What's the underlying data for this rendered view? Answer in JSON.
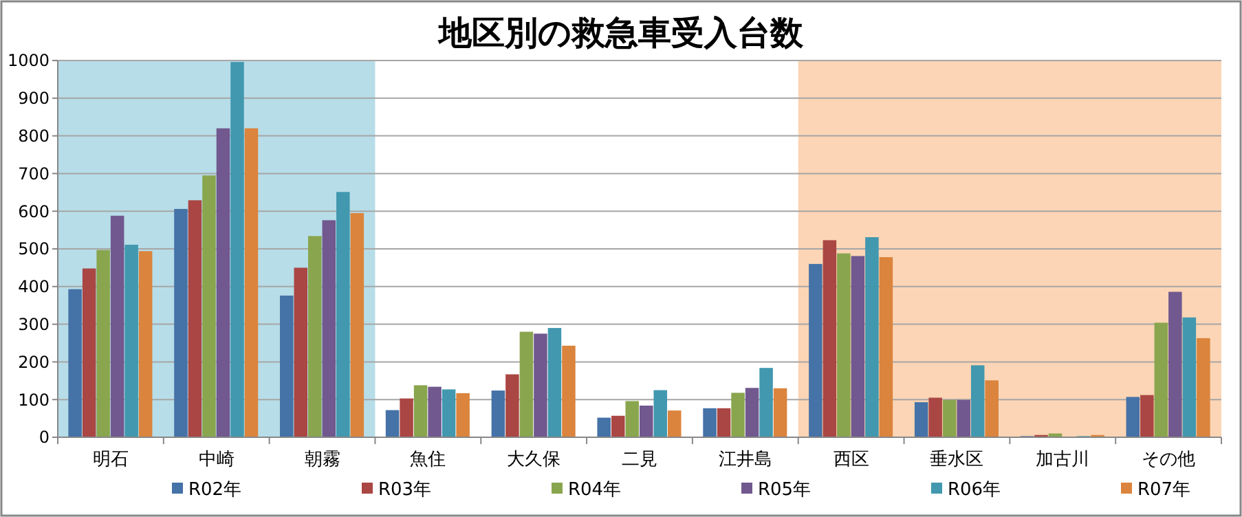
{
  "chart_data": {
    "type": "bar",
    "title": "地区別の救急車受入台数",
    "categories": [
      "明石",
      "中崎",
      "朝霧",
      "魚住",
      "大久保",
      "二見",
      "江井島",
      "西区",
      "垂水区",
      "加古川",
      "その他"
    ],
    "series": [
      {
        "name": "R02年",
        "color": "#4572a7",
        "values": [
          393,
          606,
          376,
          72,
          124,
          52,
          77,
          460,
          93,
          3,
          107
        ]
      },
      {
        "name": "R03年",
        "color": "#aa4643",
        "values": [
          448,
          629,
          450,
          103,
          167,
          57,
          77,
          523,
          105,
          6,
          112
        ]
      },
      {
        "name": "R04年",
        "color": "#89a54e",
        "values": [
          497,
          695,
          534,
          138,
          280,
          96,
          118,
          488,
          99,
          10,
          304
        ]
      },
      {
        "name": "R05年",
        "color": "#71588f",
        "values": [
          588,
          820,
          576,
          134,
          275,
          84,
          131,
          481,
          99,
          0,
          386
        ]
      },
      {
        "name": "R06年",
        "color": "#4198af",
        "values": [
          511,
          996,
          651,
          127,
          290,
          125,
          184,
          531,
          191,
          3,
          318
        ]
      },
      {
        "name": "R07年",
        "color": "#db843d",
        "values": [
          494,
          820,
          595,
          117,
          243,
          71,
          130,
          478,
          151,
          6,
          263
        ]
      }
    ],
    "ylim": [
      0,
      1000
    ],
    "yticks": [
      0,
      100,
      200,
      300,
      400,
      500,
      600,
      700,
      800,
      900,
      1000
    ],
    "grid": "y",
    "legend": "bottom",
    "bands": [
      {
        "axis": "x",
        "from": "明石",
        "to": "朝霧",
        "color": "#b7dde8"
      },
      {
        "axis": "x",
        "from": "西区",
        "to": "その他",
        "color": "#fbd5b5"
      }
    ]
  }
}
